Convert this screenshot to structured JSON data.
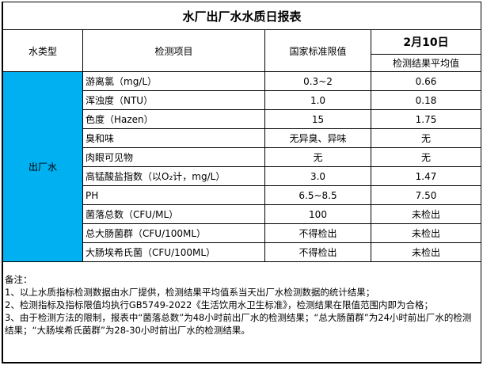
{
  "title": "水厂出厂水水质日报表",
  "header": {
    "type": "水类型",
    "item": "检测项目",
    "standard": "国家标准限值",
    "date": "2月10日",
    "result": "检测结果平均值"
  },
  "water_type": "出厂水",
  "rows": [
    {
      "item": "游离氯（mg/L）",
      "standard": "0.3~2",
      "result": "0.66"
    },
    {
      "item": "浑浊度（NTU）",
      "standard": "1.0",
      "result": "0.18"
    },
    {
      "item": "色度（Hazen）",
      "standard": "15",
      "result": "1.75"
    },
    {
      "item": "臭和味",
      "standard": "无异臭、异味",
      "result": "无"
    },
    {
      "item": "肉眼可见物",
      "standard": "无",
      "result": "无"
    },
    {
      "item": "高锰酸盐指数（以O₂计，mg/L）",
      "standard": "3.0",
      "result": "1.47"
    },
    {
      "item": "PH",
      "standard": "6.5~8.5",
      "result": "7.50"
    },
    {
      "item": "菌落总数（CFU/ML）",
      "standard": "100",
      "result": "未检出"
    },
    {
      "item": "总大肠菌群（CFU/100ML）",
      "standard": "不得检出",
      "result": "未检出"
    },
    {
      "item": "大肠埃希氏菌（CFU/100ML）",
      "standard": "不得检出",
      "result": "未检出"
    }
  ],
  "notes": {
    "heading": "备注：",
    "lines": [
      "1、以上水质指标检测数据由水厂提供，检测结果平均值系当天出厂水检测数据的统计结果；",
      "2、检测指标及指标限值均执行GB5749-2022《生活饮用水卫生标准》，检测结果在限值范围内即为合格；",
      "3、由于检测方法的限制，报表中“菌落总数”为48小时前出厂水的检测结果；“总大肠菌群”为24小时前出厂水的检测结果；“大肠埃希氏菌群”为28-30小时前出厂水的检测结果。"
    ]
  },
  "colors": {
    "water_type_bg": "#00b0f0"
  }
}
